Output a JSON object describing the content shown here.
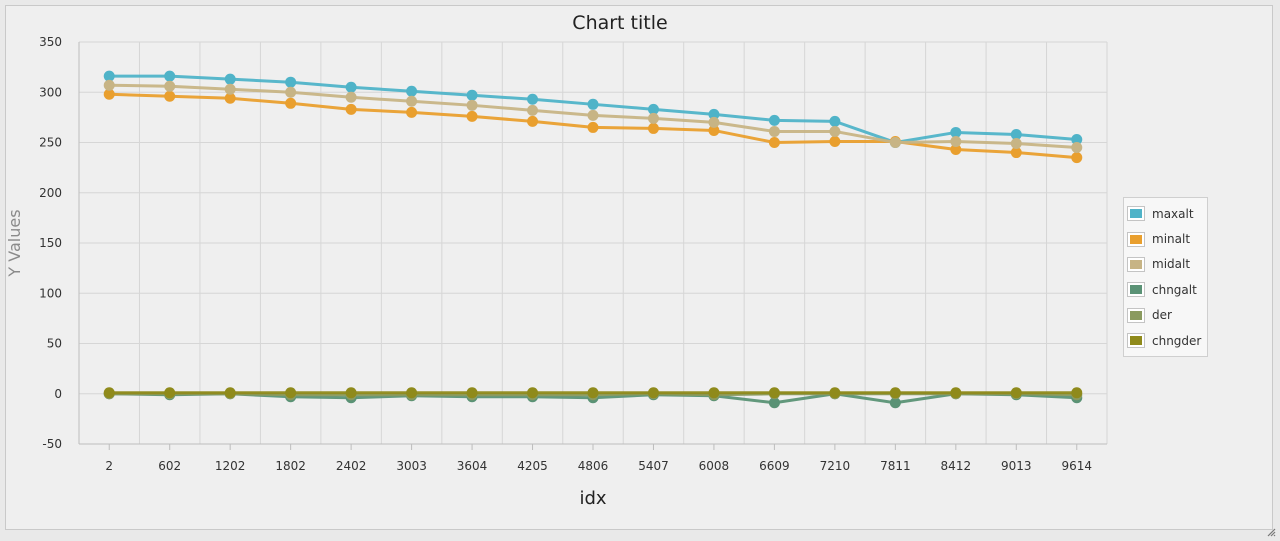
{
  "chart_data": {
    "type": "line",
    "title": "Chart title",
    "xlabel": "idx",
    "ylabel": "Y Values",
    "ylim": [
      -50,
      350
    ],
    "yticks": [
      350,
      300,
      250,
      200,
      150,
      100,
      50,
      0,
      -50
    ],
    "grid": true,
    "legend_position": "right",
    "categories": [
      "2",
      "602",
      "1202",
      "1802",
      "2402",
      "3003",
      "3604",
      "4205",
      "4806",
      "5407",
      "6008",
      "6609",
      "7210",
      "7811",
      "8412",
      "9013",
      "9614"
    ],
    "series": [
      {
        "name": "maxalt",
        "color": "#4fb3c8",
        "values": [
          316,
          316,
          313,
          310,
          305,
          301,
          297,
          293,
          288,
          283,
          278,
          272,
          271,
          250,
          260,
          258,
          253
        ]
      },
      {
        "name": "minalt",
        "color": "#e99f2e",
        "values": [
          298,
          296,
          294,
          289,
          283,
          280,
          276,
          271,
          265,
          264,
          262,
          250,
          251,
          251,
          243,
          240,
          235
        ]
      },
      {
        "name": "midalt",
        "color": "#c7b485",
        "values": [
          307,
          306,
          303,
          300,
          295,
          291,
          287,
          282,
          277,
          274,
          270,
          261,
          261,
          250,
          251,
          249,
          245
        ]
      },
      {
        "name": "chngalt",
        "color": "#5a9275",
        "values": [
          0,
          -1,
          0,
          -3,
          -4,
          -2,
          -3,
          -3,
          -4,
          -1,
          -2,
          -9,
          0,
          -9,
          0,
          -1,
          -4
        ]
      },
      {
        "name": "der",
        "color": "#8a9a5f",
        "values": [
          0,
          0,
          0,
          -1,
          -1,
          -1,
          -1,
          -1,
          -1,
          0,
          -1,
          0,
          0,
          0,
          0,
          0,
          -1
        ]
      },
      {
        "name": "chngder",
        "color": "#8f8a1b",
        "values": [
          1,
          1,
          1,
          1,
          1,
          1,
          1,
          1,
          1,
          1,
          1,
          1,
          1,
          1,
          1,
          1,
          1
        ]
      }
    ]
  }
}
